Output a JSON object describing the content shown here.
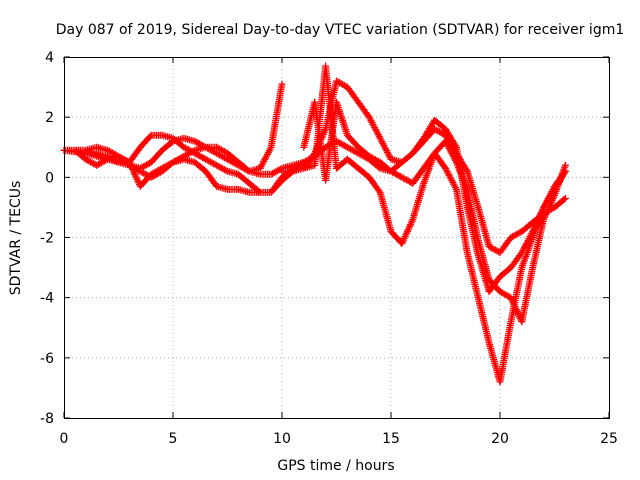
{
  "chart_data": {
    "type": "scatter",
    "title": "Day 087 of 2019, Sidereal Day-to-day VTEC variation (SDTVAR) for receiver igm1",
    "xlabel": "GPS time / hours",
    "ylabel": "SDTVAR / TECUs",
    "xlim": [
      0,
      25
    ],
    "ylim": [
      -8,
      4
    ],
    "x_ticks": [
      "0",
      "5",
      "10",
      "15",
      "20",
      "25"
    ],
    "y_ticks": [
      "4",
      "2",
      "0",
      "-2",
      "-4",
      "-6",
      "-8"
    ],
    "grid": true,
    "legend": "none",
    "marker": "plus",
    "series_color": "#ff0000",
    "series": [
      {
        "segments": [
          {
            "x": [
              0.0,
              0.5,
              1.0,
              1.5,
              2.0,
              2.5,
              3.0,
              3.5,
              4.0,
              4.5,
              5.0,
              5.5,
              6.0,
              6.5,
              7.0,
              7.5,
              8.0,
              8.5,
              9.0,
              9.5,
              10.0,
              10.5,
              11.0
            ],
            "y": [
              0.9,
              0.85,
              0.9,
              0.8,
              0.7,
              0.5,
              0.4,
              0.3,
              0.5,
              0.9,
              1.2,
              1.3,
              1.2,
              1.0,
              0.8,
              0.6,
              0.4,
              0.2,
              0.1,
              0.1,
              0.3,
              0.4,
              0.5
            ]
          },
          {
            "x": [
              11.0,
              11.5,
              12.0,
              12.5,
              13.0,
              13.5,
              14.0,
              14.5,
              15.0,
              15.5,
              16.0,
              16.5,
              17.0,
              17.5,
              18.0,
              18.5,
              19.0,
              19.5,
              20.0,
              20.5,
              21.0,
              21.5,
              22.0,
              22.5,
              23.0
            ],
            "y": [
              0.5,
              0.7,
              1.0,
              1.2,
              1.0,
              0.8,
              0.6,
              0.3,
              0.2,
              0.5,
              0.8,
              1.2,
              1.6,
              1.4,
              0.8,
              0.2,
              -1.0,
              -2.3,
              -2.5,
              -2.0,
              -1.8,
              -1.5,
              -1.2,
              -1.0,
              -0.7
            ]
          }
        ]
      },
      {
        "segments": [
          {
            "x": [
              0.0,
              0.5,
              1.0,
              1.5,
              2.0,
              2.5,
              3.0,
              3.5,
              4.0,
              4.5,
              5.0,
              5.5,
              6.0,
              6.5,
              7.0,
              7.5,
              8.0,
              8.5,
              9.0,
              9.5,
              10.0
            ],
            "y": [
              0.9,
              0.9,
              0.8,
              0.7,
              0.6,
              0.5,
              0.4,
              0.2,
              0.0,
              0.2,
              0.5,
              0.7,
              0.9,
              1.0,
              1.0,
              0.8,
              0.5,
              0.2,
              0.3,
              1.0,
              3.1
            ]
          },
          {
            "x": [
              10.0,
              10.5,
              11.0,
              11.5,
              12.0,
              12.5,
              13.0,
              13.5,
              14.0,
              14.5,
              15.0,
              15.5,
              16.0,
              16.5,
              17.0,
              17.5,
              18.0,
              18.5,
              19.0,
              19.5,
              20.0,
              20.5,
              21.0,
              21.5,
              22.0,
              22.5,
              23.0
            ],
            "y": [
              0.2,
              0.2,
              0.3,
              0.8,
              1.6,
              3.2,
              3.0,
              2.5,
              2.0,
              1.3,
              0.6,
              0.5,
              0.8,
              1.3,
              1.9,
              1.6,
              1.0,
              -1.0,
              -2.6,
              -3.8,
              -3.3,
              -3.0,
              -2.5,
              -1.8,
              -1.0,
              -0.4,
              0.2
            ]
          }
        ]
      },
      {
        "segments": [
          {
            "x": [
              0.0,
              0.5,
              1.0,
              1.5,
              2.0,
              2.5,
              3.0,
              3.5,
              4.0,
              4.5,
              5.0,
              5.5,
              6.0,
              6.5,
              7.0,
              7.5,
              8.0,
              8.5,
              9.0,
              9.5,
              10.0,
              10.5,
              11.0
            ],
            "y": [
              0.9,
              0.9,
              0.9,
              1.0,
              0.9,
              0.7,
              0.5,
              -0.3,
              0.1,
              0.3,
              0.5,
              0.6,
              0.5,
              0.2,
              -0.3,
              -0.4,
              -0.4,
              -0.5,
              -0.5,
              -0.5,
              0.0,
              0.3,
              0.4
            ]
          },
          {
            "x": [
              11.0,
              11.5,
              12.0,
              12.5,
              13.0,
              13.5,
              14.0,
              14.5,
              15.0,
              15.5,
              16.0,
              16.5,
              17.0,
              17.5,
              18.0,
              18.5,
              19.0,
              19.5,
              20.0,
              20.5,
              21.0,
              21.5,
              22.0,
              22.5,
              23.0
            ],
            "y": [
              0.3,
              0.4,
              3.7,
              0.3,
              0.6,
              0.3,
              0.0,
              -0.5,
              -1.8,
              -2.2,
              -1.4,
              -0.2,
              0.8,
              1.2,
              0.5,
              -0.4,
              -2.1,
              -3.4,
              -3.8,
              -4.0,
              -4.8,
              -3.0,
              -1.4,
              -0.6,
              0.4
            ]
          }
        ]
      },
      {
        "segments": [
          {
            "x": [
              0.0,
              0.5,
              1.0,
              1.5,
              2.0,
              2.5,
              3.0,
              3.5,
              4.0,
              4.5,
              5.0,
              5.5,
              6.0,
              6.5,
              7.0,
              7.5,
              8.0,
              8.5,
              9.0,
              9.5,
              10.0,
              10.5,
              11.0
            ],
            "y": [
              0.9,
              0.9,
              0.6,
              0.4,
              0.6,
              0.6,
              0.5,
              1.0,
              1.4,
              1.4,
              1.3,
              1.0,
              0.8,
              0.6,
              0.4,
              0.2,
              0.1,
              -0.2,
              -0.5,
              -0.5,
              -0.1,
              0.2,
              0.5
            ]
          },
          {
            "x": [
              11.0,
              11.5,
              12.0,
              12.5,
              13.0,
              13.5,
              14.0,
              14.5,
              15.0,
              15.5,
              16.0,
              16.5,
              17.0,
              17.5,
              18.0,
              18.5,
              19.0,
              19.5,
              20.0,
              20.5,
              21.0,
              21.5,
              22.0,
              22.5,
              23.0
            ],
            "y": [
              1.0,
              2.5,
              -0.1,
              2.5,
              1.4,
              1.0,
              0.7,
              0.5,
              0.2,
              0.0,
              -0.2,
              0.3,
              0.8,
              0.3,
              -0.4,
              -2.5,
              -4.0,
              -5.5,
              -6.8,
              -4.8,
              -3.0,
              -2.0,
              -1.0,
              -0.3,
              0.2
            ]
          }
        ]
      }
    ]
  }
}
